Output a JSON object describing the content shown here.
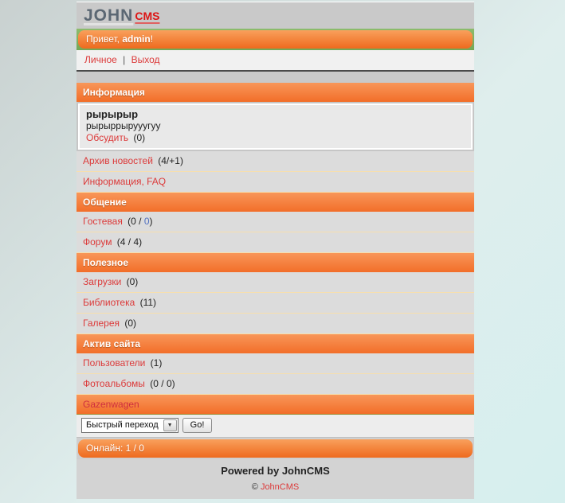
{
  "colors": {
    "accent_orange": "#f26e29",
    "accent_green": "#82b463",
    "link_red": "#dc3a3a",
    "link_blue": "#5170c0",
    "row_bg": "#dcdcdc",
    "row_border": "#f6dfae"
  },
  "header": {
    "logo_main": "JOHN",
    "logo_sub": "CMS"
  },
  "greeting": {
    "prefix": "Привет, ",
    "username": "admin",
    "suffix": "!"
  },
  "user_menu": {
    "personal": "Личное",
    "divider": "|",
    "logout": "Выход"
  },
  "news_box": {
    "title": "рырырыр",
    "body": "рырыррырууугуу",
    "discuss_label": "Обсудить",
    "discuss_count": "(0)"
  },
  "sections": [
    {
      "title": "Информация",
      "items": [
        {
          "label": "Архив новостей",
          "count": "(4/+1)"
        },
        {
          "label": "Информация, FAQ",
          "count": ""
        }
      ]
    },
    {
      "title": "Общение",
      "items": [
        {
          "label": "Гостевая",
          "count_pre": "(0 / ",
          "count_link": "0",
          "count_post": ")"
        },
        {
          "label": "Форум",
          "count": "(4 / 4)"
        }
      ]
    },
    {
      "title": "Полезное",
      "items": [
        {
          "label": "Загрузки",
          "count": "(0)"
        },
        {
          "label": "Библиотека",
          "count": "(11)"
        },
        {
          "label": "Галерея",
          "count": "(0)"
        }
      ]
    },
    {
      "title": "Актив сайта",
      "items": [
        {
          "label": "Пользователи",
          "count": "(1)"
        },
        {
          "label": "Фотоальбомы",
          "count": "(0 / 0)"
        }
      ]
    }
  ],
  "gazenwagen": {
    "label": "Gazenwagen"
  },
  "quick_jump": {
    "select_value": "Быстрый переход",
    "go_label": "Go!"
  },
  "icons": {
    "dropdown_arrow": "▼"
  },
  "online": {
    "label": "Онлайн: 1 / 0"
  },
  "footer": {
    "powered": "Powered by JohnCMS",
    "copyright_symbol": "©",
    "copyright_link": "JohnCMS"
  }
}
